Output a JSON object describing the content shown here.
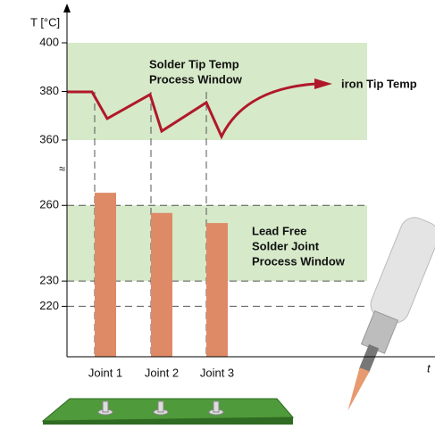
{
  "chart_data": {
    "type": "bar",
    "y_label": "T [°C]",
    "x_label": "t",
    "break_symbol": "≈",
    "upper_axis": {
      "ylim": [
        360,
        400
      ],
      "yticks": [
        360,
        380,
        400
      ]
    },
    "lower_axis": {
      "ylim": [
        200,
        270
      ],
      "yticks": [
        220,
        230,
        260
      ],
      "grid": true
    },
    "categories": [
      "Joint 1",
      "Joint 2",
      "Joint 3"
    ],
    "values": [
      265,
      257,
      253
    ],
    "color": "#de8a66",
    "band_color": "#d6e9c9",
    "windows": [
      {
        "label": [
          "Solder Tip Temp",
          "Process Window"
        ],
        "range": [
          360,
          400
        ],
        "axis": "upper"
      },
      {
        "label": [
          "Lead Free",
          "Solder Joint",
          "Process Window"
        ],
        "range": [
          230,
          260
        ],
        "axis": "lower"
      }
    ],
    "annotation": "iron Tip Temp"
  }
}
